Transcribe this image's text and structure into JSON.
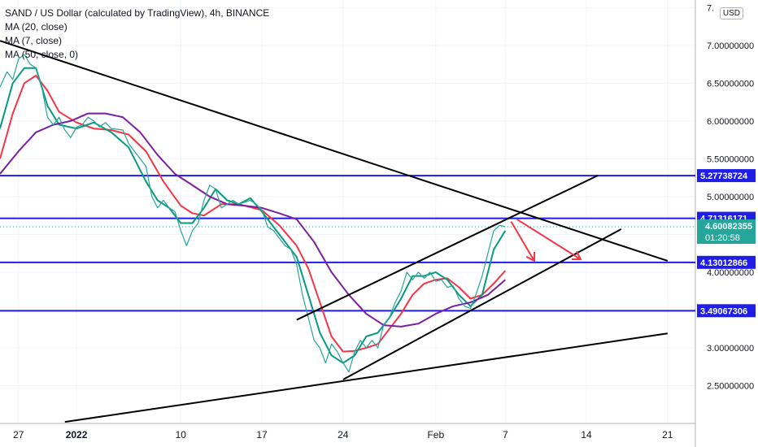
{
  "header": {
    "title": "SAND / US Dollar (calculated by TradingView), 4h, BINANCE",
    "indicators": [
      "MA (20, close)",
      "MA (7, close)",
      "MA (50, close, 0)"
    ],
    "currency": "USD"
  },
  "chart_data": {
    "type": "line",
    "y_axis": {
      "ticks": [
        2.5,
        3.0,
        3.5,
        4.0,
        4.5,
        5.0,
        5.5,
        6.0,
        6.5,
        7.0,
        7.5
      ],
      "tick_labels": [
        "2.50000000",
        "3.00000000",
        "3.50000000",
        "4.00000000",
        "4.50000000",
        "5.00000000",
        "5.50000000",
        "6.00000000",
        "6.50000000",
        "7.00000000",
        "7."
      ],
      "ylim": [
        2.0,
        7.6
      ]
    },
    "x_axis": {
      "tick_labels": [
        {
          "label": "27",
          "day": 0,
          "bold": false
        },
        {
          "label": "2022",
          "day": 5,
          "bold": true
        },
        {
          "label": "10",
          "day": 14,
          "bold": false
        },
        {
          "label": "17",
          "day": 21,
          "bold": false
        },
        {
          "label": "24",
          "day": 28,
          "bold": false
        },
        {
          "label": "Feb",
          "day": 36,
          "bold": false
        },
        {
          "label": "7",
          "day": 42,
          "bold": false
        },
        {
          "label": "14",
          "day": 49,
          "bold": false
        },
        {
          "label": "21",
          "day": 56,
          "bold": false
        }
      ],
      "xlim": [
        -1.6,
        58.4
      ]
    },
    "horizontal_levels": [
      {
        "value": 5.27738724,
        "label": "5.27738724"
      },
      {
        "value": 4.71316171,
        "label": "4.71316171"
      },
      {
        "value": 4.13012866,
        "label": "4.13012866"
      },
      {
        "value": 3.49067306,
        "label": "3.49067306"
      }
    ],
    "current_price": {
      "value": 4.60082355,
      "label": "4.60082355",
      "countdown": "01:20:58"
    },
    "series": [
      {
        "name": "MA (20, close)",
        "color": "#f23645",
        "points": [
          [
            -1.6,
            5.5
          ],
          [
            -0.5,
            6.1
          ],
          [
            0.5,
            6.5
          ],
          [
            1.5,
            6.6
          ],
          [
            2.5,
            6.4
          ],
          [
            3.5,
            6.12
          ],
          [
            5.0,
            5.98
          ],
          [
            6.5,
            5.9
          ],
          [
            8.0,
            5.88
          ],
          [
            9.5,
            5.82
          ],
          [
            11.0,
            5.6
          ],
          [
            12.5,
            5.2
          ],
          [
            14.0,
            4.88
          ],
          [
            15.0,
            4.78
          ],
          [
            16.0,
            4.75
          ],
          [
            17.5,
            4.9
          ],
          [
            19.0,
            4.9
          ],
          [
            21.0,
            4.82
          ],
          [
            22.5,
            4.62
          ],
          [
            24.0,
            4.35
          ],
          [
            25.0,
            4.05
          ],
          [
            26.0,
            3.6
          ],
          [
            27.0,
            3.15
          ],
          [
            28.0,
            2.95
          ],
          [
            29.0,
            2.96
          ],
          [
            30.0,
            3.0
          ],
          [
            31.0,
            3.05
          ],
          [
            32.0,
            3.25
          ],
          [
            33.0,
            3.45
          ],
          [
            34.0,
            3.7
          ],
          [
            35.0,
            3.85
          ],
          [
            36.0,
            3.9
          ],
          [
            37.0,
            3.92
          ],
          [
            38.0,
            3.8
          ],
          [
            39.0,
            3.65
          ],
          [
            40.0,
            3.7
          ],
          [
            41.0,
            3.85
          ],
          [
            42.0,
            4.02
          ]
        ]
      },
      {
        "name": "MA (7, close)",
        "color": "#089981",
        "points": [
          [
            -1.6,
            5.9
          ],
          [
            -0.5,
            6.5
          ],
          [
            0.5,
            6.7
          ],
          [
            1.5,
            6.7
          ],
          [
            2.5,
            6.2
          ],
          [
            3.5,
            5.95
          ],
          [
            5.0,
            5.9
          ],
          [
            6.5,
            5.98
          ],
          [
            8.0,
            5.85
          ],
          [
            9.5,
            5.65
          ],
          [
            11.0,
            5.2
          ],
          [
            12.0,
            4.95
          ],
          [
            13.0,
            4.85
          ],
          [
            14.0,
            4.65
          ],
          [
            15.0,
            4.65
          ],
          [
            16.0,
            4.85
          ],
          [
            17.0,
            5.1
          ],
          [
            18.0,
            4.95
          ],
          [
            19.0,
            4.9
          ],
          [
            20.0,
            4.98
          ],
          [
            21.0,
            4.8
          ],
          [
            22.0,
            4.6
          ],
          [
            23.0,
            4.4
          ],
          [
            24.0,
            4.2
          ],
          [
            25.0,
            3.7
          ],
          [
            26.0,
            3.2
          ],
          [
            27.0,
            2.9
          ],
          [
            28.0,
            2.8
          ],
          [
            29.0,
            2.9
          ],
          [
            30.0,
            3.15
          ],
          [
            31.0,
            3.2
          ],
          [
            32.0,
            3.4
          ],
          [
            33.0,
            3.65
          ],
          [
            34.0,
            3.95
          ],
          [
            35.0,
            3.95
          ],
          [
            36.0,
            4.0
          ],
          [
            37.0,
            3.9
          ],
          [
            38.0,
            3.7
          ],
          [
            39.0,
            3.55
          ],
          [
            40.0,
            3.7
          ],
          [
            41.0,
            4.3
          ],
          [
            42.0,
            4.55
          ]
        ]
      },
      {
        "name": "MA (50, close, 0)",
        "color": "#7b1fa2",
        "points": [
          [
            -1.6,
            5.3
          ],
          [
            0.0,
            5.6
          ],
          [
            1.5,
            5.85
          ],
          [
            3.0,
            5.95
          ],
          [
            4.5,
            6.0
          ],
          [
            6.0,
            6.1
          ],
          [
            7.5,
            6.1
          ],
          [
            9.0,
            6.05
          ],
          [
            10.5,
            5.85
          ],
          [
            12.0,
            5.55
          ],
          [
            13.5,
            5.3
          ],
          [
            15.0,
            5.15
          ],
          [
            16.5,
            5.0
          ],
          [
            18.0,
            4.9
          ],
          [
            19.5,
            4.88
          ],
          [
            21.0,
            4.85
          ],
          [
            22.5,
            4.78
          ],
          [
            24.0,
            4.7
          ],
          [
            25.5,
            4.4
          ],
          [
            27.0,
            4.0
          ],
          [
            28.5,
            3.7
          ],
          [
            30.0,
            3.45
          ],
          [
            31.5,
            3.3
          ],
          [
            33.0,
            3.28
          ],
          [
            34.5,
            3.32
          ],
          [
            36.0,
            3.45
          ],
          [
            37.5,
            3.55
          ],
          [
            39.0,
            3.6
          ],
          [
            40.5,
            3.7
          ],
          [
            42.0,
            3.9
          ]
        ]
      },
      {
        "name": "Price",
        "color": "#26a69a",
        "points": [
          [
            -1.6,
            6.45
          ],
          [
            -1.0,
            6.65
          ],
          [
            -0.5,
            6.55
          ],
          [
            0.0,
            6.82
          ],
          [
            0.5,
            6.88
          ],
          [
            1.0,
            6.75
          ],
          [
            1.5,
            6.7
          ],
          [
            2.0,
            6.45
          ],
          [
            2.5,
            6.05
          ],
          [
            3.0,
            5.95
          ],
          [
            3.5,
            6.05
          ],
          [
            4.0,
            5.88
          ],
          [
            4.5,
            5.78
          ],
          [
            5.0,
            5.92
          ],
          [
            5.5,
            5.95
          ],
          [
            6.0,
            6.05
          ],
          [
            6.5,
            6.0
          ],
          [
            7.0,
            5.92
          ],
          [
            7.5,
            5.98
          ],
          [
            8.0,
            5.9
          ],
          [
            9.0,
            5.88
          ],
          [
            9.5,
            5.7
          ],
          [
            10.0,
            5.6
          ],
          [
            10.5,
            5.5
          ],
          [
            11.0,
            5.4
          ],
          [
            11.5,
            5.0
          ],
          [
            12.0,
            4.85
          ],
          [
            12.5,
            4.95
          ],
          [
            13.0,
            4.85
          ],
          [
            13.5,
            4.8
          ],
          [
            14.0,
            4.55
          ],
          [
            14.5,
            4.35
          ],
          [
            15.0,
            4.55
          ],
          [
            15.5,
            4.65
          ],
          [
            16.0,
            4.95
          ],
          [
            16.5,
            5.15
          ],
          [
            17.0,
            5.1
          ],
          [
            17.5,
            4.85
          ],
          [
            18.0,
            4.9
          ],
          [
            18.5,
            4.95
          ],
          [
            19.0,
            4.9
          ],
          [
            20.0,
            4.95
          ],
          [
            20.5,
            4.9
          ],
          [
            21.0,
            4.82
          ],
          [
            21.5,
            4.6
          ],
          [
            22.0,
            4.55
          ],
          [
            22.5,
            4.45
          ],
          [
            23.0,
            4.35
          ],
          [
            23.5,
            4.3
          ],
          [
            24.0,
            4.1
          ],
          [
            24.5,
            3.7
          ],
          [
            25.0,
            3.4
          ],
          [
            25.5,
            3.1
          ],
          [
            26.0,
            3.0
          ],
          [
            26.5,
            2.8
          ],
          [
            27.0,
            3.05
          ],
          [
            27.5,
            2.95
          ],
          [
            28.0,
            2.8
          ],
          [
            28.5,
            2.68
          ],
          [
            29.0,
            2.95
          ],
          [
            29.5,
            3.1
          ],
          [
            30.0,
            3.0
          ],
          [
            30.5,
            3.1
          ],
          [
            31.0,
            3.0
          ],
          [
            31.5,
            3.3
          ],
          [
            32.0,
            3.4
          ],
          [
            32.5,
            3.6
          ],
          [
            33.0,
            3.75
          ],
          [
            33.5,
            4.0
          ],
          [
            34.0,
            3.9
          ],
          [
            34.5,
            4.0
          ],
          [
            35.0,
            3.92
          ],
          [
            35.5,
            4.0
          ],
          [
            36.0,
            3.88
          ],
          [
            36.5,
            3.9
          ],
          [
            37.0,
            3.8
          ],
          [
            37.5,
            3.82
          ],
          [
            38.0,
            3.65
          ],
          [
            38.5,
            3.55
          ],
          [
            39.0,
            3.52
          ],
          [
            39.5,
            3.72
          ],
          [
            40.0,
            3.95
          ],
          [
            40.5,
            4.25
          ],
          [
            41.0,
            4.55
          ],
          [
            41.5,
            4.62
          ],
          [
            42.0,
            4.6
          ]
        ]
      }
    ],
    "trendlines": [
      {
        "from": [
          -1.6,
          7.06
        ],
        "to": [
          56.0,
          4.15
        ],
        "color": "#000000"
      },
      {
        "from": [
          4.0,
          2.02
        ],
        "to": [
          56.0,
          3.19
        ],
        "color": "#000000"
      },
      {
        "from": [
          24.0,
          3.37
        ],
        "to": [
          50.0,
          5.28
        ],
        "color": "#000000"
      },
      {
        "from": [
          28.0,
          2.58
        ],
        "to": [
          52.0,
          4.57
        ],
        "color": "#000000"
      }
    ],
    "arrows": [
      {
        "from": [
          42.5,
          4.67
        ],
        "to": [
          44.5,
          4.15
        ],
        "color": "#f23645"
      },
      {
        "from": [
          43.0,
          4.7
        ],
        "to": [
          48.5,
          4.17
        ],
        "color": "#f23645"
      }
    ]
  }
}
